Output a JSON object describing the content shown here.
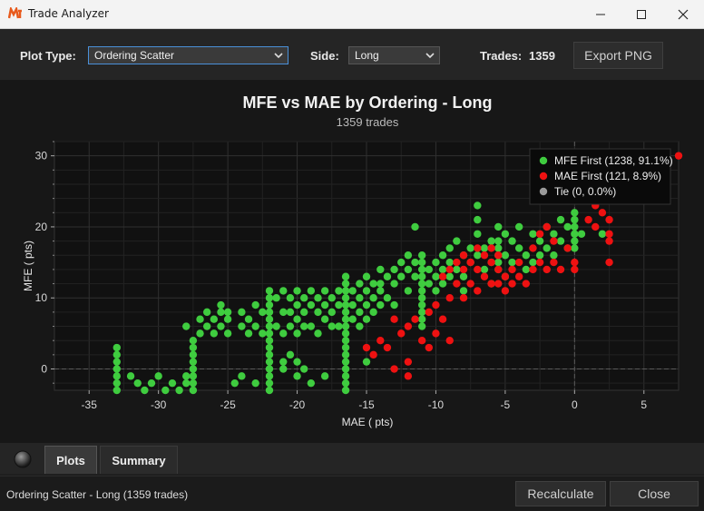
{
  "window": {
    "title": "Trade Analyzer"
  },
  "toolbar": {
    "plot_type_label": "Plot Type:",
    "plot_type_value": "Ordering Scatter",
    "side_label": "Side:",
    "side_value": "Long",
    "trades_label": "Trades:",
    "trades_value": "1359",
    "export_label": "Export PNG"
  },
  "tabs": {
    "plots_label": "Plots",
    "summary_label": "Summary",
    "active": "Plots"
  },
  "status": {
    "text": "Ordering Scatter - Long (1359 trades)",
    "recalculate_label": "Recalculate",
    "close_label": "Close"
  },
  "colors": {
    "mfe_first": "#3fcc3f",
    "mae_first": "#ee1111",
    "tie": "#9a9a9a",
    "background": "#171717",
    "accent": "#4a90d9"
  },
  "chart_data": {
    "type": "scatter",
    "title": "MFE vs MAE by Ordering - Long",
    "subtitle": "1359 trades",
    "xlabel": "MAE ( pts)",
    "ylabel": "MFE ( pts)",
    "xlim": [
      -37.5,
      7.5
    ],
    "ylim": [
      -3,
      32
    ],
    "xticks": [
      -35,
      -30,
      -25,
      -20,
      -15,
      -10,
      -5,
      0,
      5
    ],
    "yticks": [
      0,
      10,
      20,
      30
    ],
    "grid": true,
    "legend_position": "top-right",
    "series": [
      {
        "name": "MFE First (1238, 91.1%)",
        "color": "#3fcc3f",
        "points": [
          [
            -33,
            3
          ],
          [
            -33,
            2
          ],
          [
            -33,
            1
          ],
          [
            -33,
            0
          ],
          [
            -33,
            -1
          ],
          [
            -33,
            -2
          ],
          [
            -33,
            -3
          ],
          [
            -32,
            -1
          ],
          [
            -31.5,
            -2
          ],
          [
            -31,
            -3
          ],
          [
            -30.5,
            -2
          ],
          [
            -30,
            -1
          ],
          [
            -29.5,
            -3
          ],
          [
            -29,
            -2
          ],
          [
            -28.5,
            -3
          ],
          [
            -28,
            -2
          ],
          [
            -28,
            6
          ],
          [
            -28,
            -1
          ],
          [
            -27.5,
            4
          ],
          [
            -27.5,
            3
          ],
          [
            -27.5,
            2
          ],
          [
            -27.5,
            1
          ],
          [
            -27.5,
            0
          ],
          [
            -27.5,
            -1
          ],
          [
            -27.5,
            -2
          ],
          [
            -27.5,
            -3
          ],
          [
            -27,
            7
          ],
          [
            -27,
            5
          ],
          [
            -26.5,
            8
          ],
          [
            -26.5,
            6
          ],
          [
            -26,
            7
          ],
          [
            -26,
            5
          ],
          [
            -25.5,
            9
          ],
          [
            -25.5,
            8
          ],
          [
            -25.5,
            6
          ],
          [
            -25,
            8
          ],
          [
            -25,
            7
          ],
          [
            -25,
            5
          ],
          [
            -24.5,
            -2
          ],
          [
            -24,
            8
          ],
          [
            -24,
            6
          ],
          [
            -24,
            -1
          ],
          [
            -23.5,
            7
          ],
          [
            -23.5,
            5
          ],
          [
            -23,
            9
          ],
          [
            -23,
            6
          ],
          [
            -23,
            -2
          ],
          [
            -22.5,
            8
          ],
          [
            -22.5,
            5
          ],
          [
            -22,
            11
          ],
          [
            -22,
            10
          ],
          [
            -22,
            9
          ],
          [
            -22,
            8
          ],
          [
            -22,
            7
          ],
          [
            -22,
            6
          ],
          [
            -22,
            5
          ],
          [
            -22,
            4
          ],
          [
            -22,
            3
          ],
          [
            -22,
            2
          ],
          [
            -22,
            1
          ],
          [
            -22,
            0
          ],
          [
            -22,
            -1
          ],
          [
            -22,
            -2
          ],
          [
            -22,
            -3
          ],
          [
            -21.5,
            10
          ],
          [
            -21.5,
            6
          ],
          [
            -21,
            11
          ],
          [
            -21,
            8
          ],
          [
            -21,
            5
          ],
          [
            -21,
            1
          ],
          [
            -21,
            0
          ],
          [
            -20.5,
            10
          ],
          [
            -20.5,
            8
          ],
          [
            -20.5,
            6
          ],
          [
            -20.5,
            2
          ],
          [
            -20,
            11
          ],
          [
            -20,
            9
          ],
          [
            -20,
            7
          ],
          [
            -20,
            5
          ],
          [
            -20,
            1
          ],
          [
            -20,
            -1
          ],
          [
            -19.5,
            10
          ],
          [
            -19.5,
            8
          ],
          [
            -19.5,
            6
          ],
          [
            -19.5,
            0
          ],
          [
            -19,
            11
          ],
          [
            -19,
            9
          ],
          [
            -19,
            6
          ],
          [
            -19,
            -2
          ],
          [
            -18.5,
            10
          ],
          [
            -18.5,
            8
          ],
          [
            -18.5,
            5
          ],
          [
            -18,
            11
          ],
          [
            -18,
            9
          ],
          [
            -18,
            7
          ],
          [
            -18,
            -1
          ],
          [
            -17.5,
            10
          ],
          [
            -17.5,
            8
          ],
          [
            -17.5,
            6
          ],
          [
            -17,
            11
          ],
          [
            -17,
            9
          ],
          [
            -17,
            6
          ],
          [
            -16.5,
            13
          ],
          [
            -16.5,
            12
          ],
          [
            -16.5,
            11
          ],
          [
            -16.5,
            10
          ],
          [
            -16.5,
            9
          ],
          [
            -16.5,
            8
          ],
          [
            -16.5,
            7
          ],
          [
            -16.5,
            6
          ],
          [
            -16.5,
            5
          ],
          [
            -16.5,
            4
          ],
          [
            -16.5,
            3
          ],
          [
            -16.5,
            2
          ],
          [
            -16.5,
            1
          ],
          [
            -16.5,
            0
          ],
          [
            -16.5,
            -1
          ],
          [
            -16.5,
            -2
          ],
          [
            -16.5,
            -3
          ],
          [
            -16,
            11
          ],
          [
            -16,
            9
          ],
          [
            -16,
            7
          ],
          [
            -15.5,
            12
          ],
          [
            -15.5,
            10
          ],
          [
            -15.5,
            8
          ],
          [
            -15.5,
            6
          ],
          [
            -15,
            13
          ],
          [
            -15,
            11
          ],
          [
            -15,
            9
          ],
          [
            -15,
            7
          ],
          [
            -15,
            1
          ],
          [
            -14.5,
            12
          ],
          [
            -14.5,
            10
          ],
          [
            -14.5,
            8
          ],
          [
            -14,
            14
          ],
          [
            -14,
            12
          ],
          [
            -14,
            11
          ],
          [
            -14,
            9
          ],
          [
            -13.5,
            13
          ],
          [
            -13.5,
            10
          ],
          [
            -13,
            14
          ],
          [
            -13,
            12
          ],
          [
            -13,
            9
          ],
          [
            -12.5,
            15
          ],
          [
            -12.5,
            13
          ],
          [
            -12,
            16
          ],
          [
            -12,
            14
          ],
          [
            -12,
            11
          ],
          [
            -11.5,
            15
          ],
          [
            -11.5,
            13
          ],
          [
            -11.5,
            20
          ],
          [
            -11,
            16
          ],
          [
            -11,
            15
          ],
          [
            -11,
            14
          ],
          [
            -11,
            13
          ],
          [
            -11,
            12
          ],
          [
            -11,
            11
          ],
          [
            -11,
            10
          ],
          [
            -11,
            9
          ],
          [
            -11,
            8
          ],
          [
            -11,
            7
          ],
          [
            -11,
            6
          ],
          [
            -10.5,
            14
          ],
          [
            -10.5,
            12
          ],
          [
            -10,
            15
          ],
          [
            -10,
            13
          ],
          [
            -10,
            11
          ],
          [
            -9.5,
            16
          ],
          [
            -9.5,
            14
          ],
          [
            -9.5,
            12
          ],
          [
            -9,
            17
          ],
          [
            -9,
            15
          ],
          [
            -9,
            13
          ],
          [
            -8.5,
            18
          ],
          [
            -8.5,
            14
          ],
          [
            -8,
            16
          ],
          [
            -8,
            13
          ],
          [
            -8,
            11
          ],
          [
            -7.5,
            17
          ],
          [
            -7.5,
            15
          ],
          [
            -7,
            19
          ],
          [
            -7,
            16
          ],
          [
            -7,
            23
          ],
          [
            -7,
            21
          ],
          [
            -6.5,
            17
          ],
          [
            -6.5,
            14
          ],
          [
            -6,
            18
          ],
          [
            -6,
            15
          ],
          [
            -6,
            12
          ],
          [
            -5.5,
            20
          ],
          [
            -5.5,
            18
          ],
          [
            -5.5,
            17
          ],
          [
            -5.5,
            16
          ],
          [
            -5.5,
            15
          ],
          [
            -5.5,
            14
          ],
          [
            -5,
            19
          ],
          [
            -5,
            16
          ],
          [
            -5,
            13
          ],
          [
            -4.5,
            18
          ],
          [
            -4.5,
            15
          ],
          [
            -4,
            20
          ],
          [
            -4,
            17
          ],
          [
            -3.5,
            16
          ],
          [
            -3.5,
            14
          ],
          [
            -3,
            19
          ],
          [
            -3,
            15
          ],
          [
            -2.5,
            18
          ],
          [
            -2.5,
            16
          ],
          [
            -2,
            20
          ],
          [
            -2,
            17
          ],
          [
            -1.5,
            19
          ],
          [
            -1.5,
            16
          ],
          [
            -1,
            21
          ],
          [
            -1,
            18
          ],
          [
            -0.5,
            20
          ],
          [
            -0.5,
            17
          ],
          [
            0,
            22
          ],
          [
            0,
            21
          ],
          [
            0,
            20
          ],
          [
            0,
            19
          ],
          [
            0,
            18
          ],
          [
            0,
            17
          ],
          [
            0.5,
            19
          ],
          [
            2,
            19
          ]
        ]
      },
      {
        "name": "MAE First (121, 8.9%)",
        "color": "#ee1111",
        "points": [
          [
            -15,
            3
          ],
          [
            -14.5,
            2
          ],
          [
            -14,
            4
          ],
          [
            -13.5,
            3
          ],
          [
            -13,
            7
          ],
          [
            -12.5,
            5
          ],
          [
            -12,
            6
          ],
          [
            -12,
            1
          ],
          [
            -11.5,
            7
          ],
          [
            -11,
            4
          ],
          [
            -10.5,
            8
          ],
          [
            -10.5,
            3
          ],
          [
            -10,
            9
          ],
          [
            -10,
            5
          ],
          [
            -9.5,
            13
          ],
          [
            -9.5,
            7
          ],
          [
            -9,
            14
          ],
          [
            -9,
            10
          ],
          [
            -9,
            4
          ],
          [
            -8.5,
            15
          ],
          [
            -8.5,
            12
          ],
          [
            -8,
            16
          ],
          [
            -8,
            14
          ],
          [
            -8,
            10
          ],
          [
            -7.5,
            15
          ],
          [
            -7.5,
            12
          ],
          [
            -7,
            17
          ],
          [
            -7,
            14
          ],
          [
            -7,
            11
          ],
          [
            -6.5,
            16
          ],
          [
            -6.5,
            13
          ],
          [
            -6,
            17
          ],
          [
            -6,
            15
          ],
          [
            -6,
            12
          ],
          [
            -5.5,
            16
          ],
          [
            -5.5,
            14
          ],
          [
            -5.5,
            12
          ],
          [
            -5,
            13
          ],
          [
            -5,
            11
          ],
          [
            -4.5,
            14
          ],
          [
            -4.5,
            12
          ],
          [
            -4,
            15
          ],
          [
            -4,
            13
          ],
          [
            -3.5,
            12
          ],
          [
            -3,
            17
          ],
          [
            -3,
            14
          ],
          [
            -2.5,
            19
          ],
          [
            -2.5,
            15
          ],
          [
            -2,
            20
          ],
          [
            -2,
            14
          ],
          [
            -1.5,
            18
          ],
          [
            -1.5,
            15
          ],
          [
            -1,
            14
          ],
          [
            -0.5,
            17
          ],
          [
            0,
            15
          ],
          [
            0,
            14
          ],
          [
            1,
            21
          ],
          [
            1.5,
            23
          ],
          [
            1.5,
            20
          ],
          [
            2,
            22
          ],
          [
            2.5,
            21
          ],
          [
            2.5,
            19
          ],
          [
            2.5,
            18
          ],
          [
            2.5,
            24
          ],
          [
            2.5,
            15
          ],
          [
            7.5,
            30
          ],
          [
            -13,
            0
          ],
          [
            -12,
            -1
          ]
        ]
      },
      {
        "name": "Tie (0, 0.0%)",
        "color": "#9a9a9a",
        "points": []
      }
    ]
  }
}
